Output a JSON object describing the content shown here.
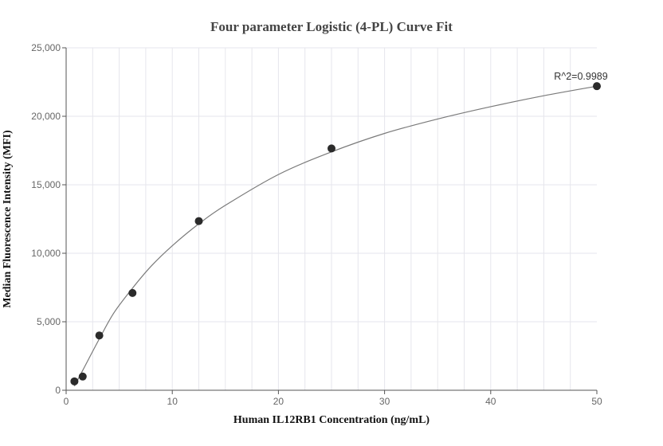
{
  "chart_data": {
    "type": "scatter",
    "title": "Four parameter Logistic (4-PL) Curve Fit",
    "xlabel": "Human IL12RB1 Concentration (ng/mL)",
    "ylabel": "Median Fluorescence Intensity (MFI)",
    "xlim": [
      0,
      50
    ],
    "ylim": [
      0,
      25000
    ],
    "x_ticks": [
      0,
      10,
      20,
      30,
      40,
      50
    ],
    "x_tick_labels": [
      "0",
      "10",
      "20",
      "30",
      "40",
      "50"
    ],
    "y_ticks": [
      0,
      5000,
      10000,
      15000,
      20000,
      25000
    ],
    "y_tick_labels": [
      "0",
      "5,000",
      "10,000",
      "15,000",
      "20,000",
      "25,000"
    ],
    "grid": true,
    "series": [
      {
        "points": [
          {
            "x": 0.78,
            "y": 650
          },
          {
            "x": 1.56,
            "y": 1000
          },
          {
            "x": 3.125,
            "y": 4000
          },
          {
            "x": 6.25,
            "y": 7100
          },
          {
            "x": 12.5,
            "y": 12350
          },
          {
            "x": 25,
            "y": 17650
          },
          {
            "x": 50,
            "y": 22200
          }
        ]
      }
    ],
    "fit_curve": {
      "model": "4PL",
      "points": [
        {
          "x": 0.78,
          "y": 300
        },
        {
          "x": 1.56,
          "y": 1450
        },
        {
          "x": 3.125,
          "y": 3750
        },
        {
          "x": 4.5,
          "y": 5650
        },
        {
          "x": 6.25,
          "y": 7450
        },
        {
          "x": 8,
          "y": 9050
        },
        {
          "x": 10,
          "y": 10550
        },
        {
          "x": 12.5,
          "y": 12150
        },
        {
          "x": 15,
          "y": 13500
        },
        {
          "x": 20,
          "y": 15750
        },
        {
          "x": 25,
          "y": 17400
        },
        {
          "x": 30,
          "y": 18750
        },
        {
          "x": 35,
          "y": 19800
        },
        {
          "x": 40,
          "y": 20700
        },
        {
          "x": 45,
          "y": 21500
        },
        {
          "x": 50,
          "y": 22200
        }
      ]
    },
    "annotation": {
      "text": "R^2=0.9989",
      "x": 50,
      "y": 22200
    }
  },
  "colors": {
    "point": "#2b2b2b",
    "curve": "#7a7a7a",
    "grid": "#e6e6ec",
    "axis": "#555555"
  }
}
